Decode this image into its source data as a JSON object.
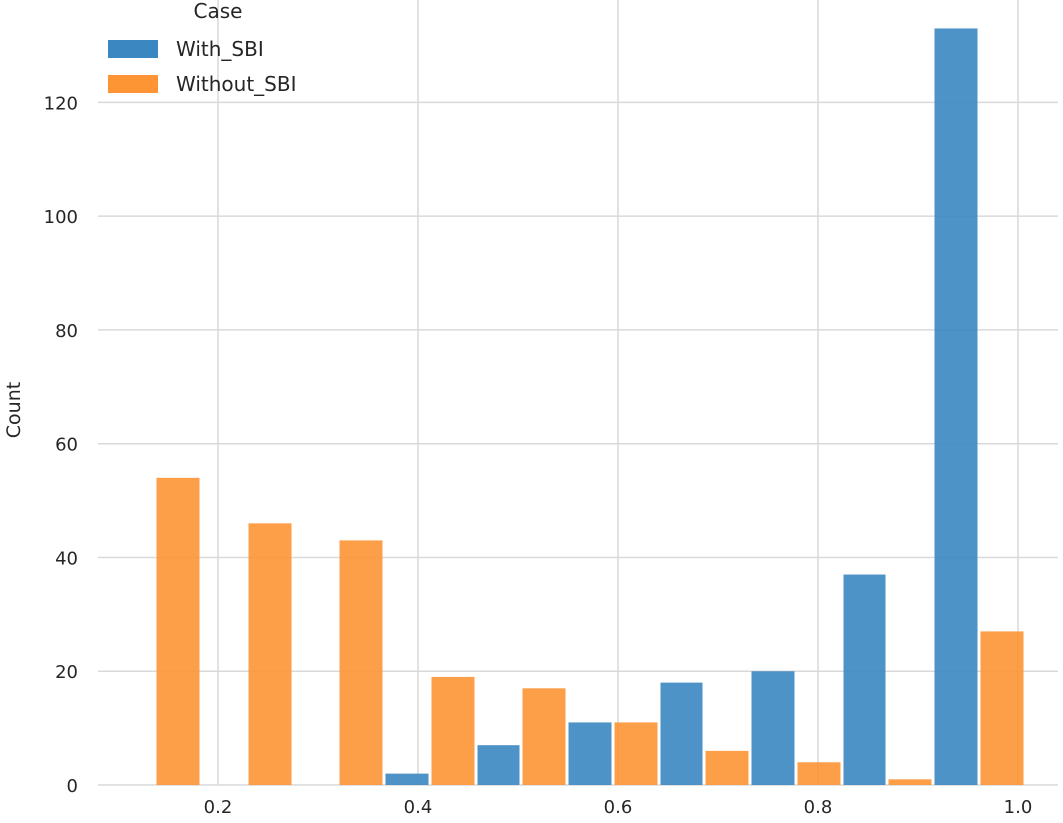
{
  "chart_data": {
    "type": "bar",
    "xlabel": "",
    "ylabel": "Count",
    "xlim": [
      0.08,
      1.04
    ],
    "ylim": [
      0,
      138
    ],
    "x_ticks": [
      "0.2",
      "0.4",
      "0.6",
      "0.8",
      "1.0"
    ],
    "x_tick_values": [
      0.2,
      0.4,
      0.6,
      0.8,
      1.0
    ],
    "y_ticks": [
      "0",
      "20",
      "40",
      "60",
      "80",
      "100",
      "120"
    ],
    "y_tick_values": [
      0,
      20,
      40,
      60,
      80,
      100,
      120
    ],
    "grid": true,
    "legend": {
      "title": "Case",
      "position": "top-left"
    },
    "bins": [
      [
        0.137,
        0.183
      ],
      [
        0.229,
        0.275
      ],
      [
        0.32,
        0.366
      ],
      [
        0.366,
        0.412
      ],
      [
        0.412,
        0.458
      ],
      [
        0.458,
        0.503
      ],
      [
        0.503,
        0.549
      ],
      [
        0.549,
        0.595
      ],
      [
        0.595,
        0.641
      ],
      [
        0.641,
        0.686
      ],
      [
        0.686,
        0.732
      ],
      [
        0.732,
        0.778
      ],
      [
        0.778,
        0.824
      ],
      [
        0.824,
        0.869
      ],
      [
        0.869,
        0.915
      ],
      [
        0.915,
        0.961
      ],
      [
        0.961,
        1.007
      ]
    ],
    "series": [
      {
        "name": "With_SBI",
        "color": "#3b87c1",
        "values": [
          0,
          0,
          0,
          2,
          0,
          7,
          0,
          11,
          0,
          18,
          0,
          20,
          0,
          37,
          0,
          133,
          0
        ]
      },
      {
        "name": "Without_SBI",
        "color": "#fd9535",
        "values": [
          54,
          46,
          43,
          0,
          19,
          0,
          17,
          0,
          11,
          0,
          6,
          0,
          4,
          0,
          1,
          0,
          27
        ]
      }
    ]
  }
}
